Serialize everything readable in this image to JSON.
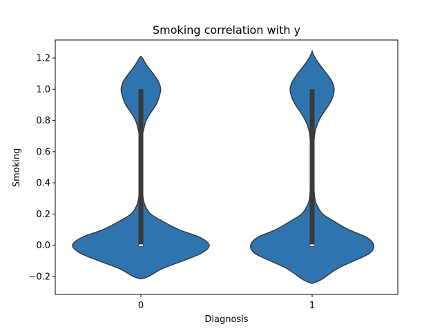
{
  "chart_data": {
    "type": "violin",
    "title": "Smoking correlation with y",
    "xlabel": "Diagnosis",
    "ylabel": "Smoking",
    "categories": [
      "0",
      "1"
    ],
    "ylim": [
      -0.315,
      1.315
    ],
    "yticks": [
      -0.2,
      0.0,
      0.2,
      0.4,
      0.6,
      0.8,
      1.0,
      1.2
    ],
    "ytick_labels": [
      "−0.2",
      "0.0",
      "0.2",
      "0.4",
      "0.6",
      "0.8",
      "1.0",
      "1.2"
    ],
    "grid": false,
    "fill_color": "#2e75b0",
    "edge_color": "#3a3a3a",
    "violins": [
      {
        "category": "0",
        "y_min": -0.215,
        "y_max": 1.21,
        "median": 0.0,
        "q1": 0.0,
        "q3": 1.0,
        "whisker_low": 0.0,
        "whisker_high": 1.0,
        "density": [
          [
            -0.215,
            0.0
          ],
          [
            -0.2,
            0.1
          ],
          [
            -0.15,
            0.28
          ],
          [
            -0.1,
            0.55
          ],
          [
            -0.05,
            0.8
          ],
          [
            0.0,
            0.9
          ],
          [
            0.05,
            0.78
          ],
          [
            0.1,
            0.5
          ],
          [
            0.15,
            0.3
          ],
          [
            0.2,
            0.13
          ],
          [
            0.25,
            0.06
          ],
          [
            0.3,
            0.03
          ],
          [
            0.4,
            0.015
          ],
          [
            0.5,
            0.01
          ],
          [
            0.6,
            0.012
          ],
          [
            0.7,
            0.02
          ],
          [
            0.75,
            0.04
          ],
          [
            0.8,
            0.07
          ],
          [
            0.85,
            0.13
          ],
          [
            0.9,
            0.2
          ],
          [
            0.95,
            0.24
          ],
          [
            1.0,
            0.26
          ],
          [
            1.05,
            0.23
          ],
          [
            1.1,
            0.16
          ],
          [
            1.15,
            0.08
          ],
          [
            1.2,
            0.02
          ],
          [
            1.21,
            0.0
          ]
        ]
      },
      {
        "category": "1",
        "y_min": -0.245,
        "y_max": 1.24,
        "median": 0.0,
        "q1": 0.0,
        "q3": 1.0,
        "whisker_low": 0.0,
        "whisker_high": 1.0,
        "density": [
          [
            -0.245,
            0.0
          ],
          [
            -0.22,
            0.12
          ],
          [
            -0.15,
            0.33
          ],
          [
            -0.1,
            0.55
          ],
          [
            -0.05,
            0.76
          ],
          [
            0.0,
            0.81
          ],
          [
            0.05,
            0.72
          ],
          [
            0.1,
            0.48
          ],
          [
            0.15,
            0.3
          ],
          [
            0.2,
            0.14
          ],
          [
            0.25,
            0.07
          ],
          [
            0.3,
            0.035
          ],
          [
            0.4,
            0.02
          ],
          [
            0.5,
            0.015
          ],
          [
            0.6,
            0.018
          ],
          [
            0.7,
            0.03
          ],
          [
            0.75,
            0.05
          ],
          [
            0.8,
            0.09
          ],
          [
            0.85,
            0.15
          ],
          [
            0.9,
            0.22
          ],
          [
            0.95,
            0.27
          ],
          [
            1.0,
            0.29
          ],
          [
            1.05,
            0.26
          ],
          [
            1.1,
            0.19
          ],
          [
            1.15,
            0.11
          ],
          [
            1.2,
            0.04
          ],
          [
            1.24,
            0.0
          ]
        ]
      }
    ]
  }
}
